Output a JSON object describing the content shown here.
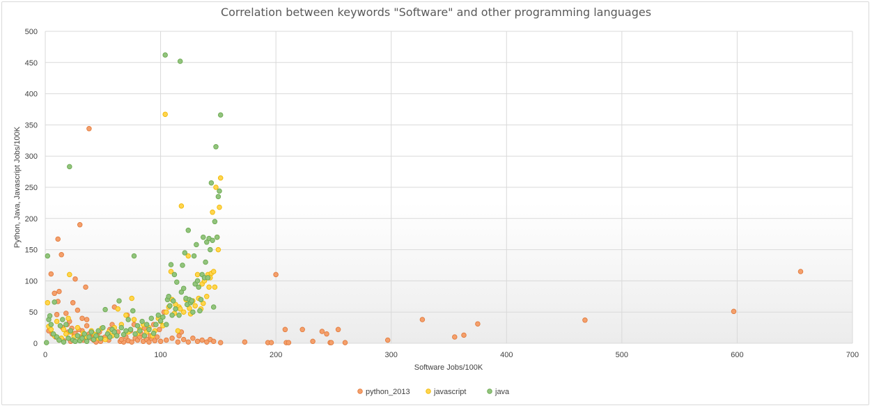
{
  "chart_data": {
    "type": "scatter",
    "title": "Correlation between keywords \"Software\" and other programming languages",
    "xlabel": "Software Jobs/100K",
    "ylabel": "Python, Java, Javascript Jobs/100K",
    "xlim": [
      0,
      700
    ],
    "ylim": [
      0,
      500
    ],
    "x_ticks": [
      0,
      100,
      200,
      300,
      400,
      500,
      600,
      700
    ],
    "y_ticks": [
      0,
      50,
      100,
      150,
      200,
      250,
      300,
      350,
      400,
      450,
      500
    ],
    "grid": true,
    "legend_position": "bottom",
    "series": [
      {
        "name": "python_2013",
        "color": "#f4a06c",
        "stroke": "#e27a3c",
        "points": [
          [
            5,
            111
          ],
          [
            8,
            80
          ],
          [
            10,
            46
          ],
          [
            11,
            67
          ],
          [
            11,
            167
          ],
          [
            12,
            83
          ],
          [
            14,
            142
          ],
          [
            18,
            48
          ],
          [
            22,
            3
          ],
          [
            24,
            65
          ],
          [
            26,
            103
          ],
          [
            28,
            53
          ],
          [
            30,
            190
          ],
          [
            32,
            40
          ],
          [
            35,
            90
          ],
          [
            38,
            15
          ],
          [
            38,
            344
          ],
          [
            15,
            25
          ],
          [
            20,
            18
          ],
          [
            25,
            12
          ],
          [
            30,
            10
          ],
          [
            32,
            20
          ],
          [
            36,
            28
          ],
          [
            40,
            8
          ],
          [
            42,
            5
          ],
          [
            45,
            12
          ],
          [
            48,
            3
          ],
          [
            50,
            8
          ],
          [
            55,
            5
          ],
          [
            58,
            30
          ],
          [
            60,
            58
          ],
          [
            62,
            12
          ],
          [
            65,
            3
          ],
          [
            68,
            2
          ],
          [
            70,
            10
          ],
          [
            72,
            4
          ],
          [
            75,
            2
          ],
          [
            78,
            8
          ],
          [
            80,
            5
          ],
          [
            82,
            10
          ],
          [
            85,
            3
          ],
          [
            88,
            6
          ],
          [
            90,
            2
          ],
          [
            92,
            8
          ],
          [
            95,
            4
          ],
          [
            97,
            10
          ],
          [
            100,
            3
          ],
          [
            105,
            5
          ],
          [
            110,
            8
          ],
          [
            115,
            2
          ],
          [
            116,
            12
          ],
          [
            118,
            18
          ],
          [
            120,
            6
          ],
          [
            124,
            2
          ],
          [
            128,
            8
          ],
          [
            132,
            3
          ],
          [
            136,
            5
          ],
          [
            140,
            2
          ],
          [
            143,
            6
          ],
          [
            146,
            3
          ],
          [
            152,
            1
          ],
          [
            173,
            2
          ],
          [
            193,
            1
          ],
          [
            196,
            1
          ],
          [
            200,
            110
          ],
          [
            208,
            22
          ],
          [
            209,
            1
          ],
          [
            211,
            1
          ],
          [
            223,
            22
          ],
          [
            232,
            3
          ],
          [
            240,
            19
          ],
          [
            244,
            15
          ],
          [
            247,
            1
          ],
          [
            248,
            1
          ],
          [
            254,
            22
          ],
          [
            260,
            1
          ],
          [
            297,
            5
          ],
          [
            327,
            38
          ],
          [
            355,
            10
          ],
          [
            363,
            13
          ],
          [
            375,
            31
          ],
          [
            468,
            37
          ],
          [
            597,
            51
          ],
          [
            655,
            115
          ],
          [
            3,
            20
          ],
          [
            6,
            15
          ],
          [
            9,
            10
          ],
          [
            12,
            6
          ],
          [
            16,
            4
          ],
          [
            19,
            30
          ],
          [
            21,
            35
          ],
          [
            23,
            24
          ],
          [
            26,
            16
          ],
          [
            29,
            22
          ],
          [
            33,
            5
          ],
          [
            36,
            38
          ],
          [
            41,
            16
          ],
          [
            44,
            2
          ],
          [
            47,
            18
          ],
          [
            52,
            10
          ],
          [
            56,
            22
          ],
          [
            63,
            18
          ],
          [
            66,
            6
          ],
          [
            71,
            45
          ],
          [
            74,
            20
          ],
          [
            77,
            30
          ],
          [
            83,
            16
          ],
          [
            86,
            24
          ],
          [
            91,
            12
          ],
          [
            94,
            30
          ],
          [
            99,
            22
          ],
          [
            103,
            50
          ]
        ]
      },
      {
        "name": "javascript",
        "color": "#ffd54f",
        "stroke": "#f0b800",
        "points": [
          [
            2,
            65
          ],
          [
            3,
            27
          ],
          [
            5,
            22
          ],
          [
            8,
            12
          ],
          [
            10,
            35
          ],
          [
            12,
            5
          ],
          [
            14,
            8
          ],
          [
            16,
            22
          ],
          [
            18,
            15
          ],
          [
            20,
            40
          ],
          [
            21,
            110
          ],
          [
            22,
            18
          ],
          [
            25,
            10
          ],
          [
            28,
            25
          ],
          [
            30,
            6
          ],
          [
            33,
            16
          ],
          [
            36,
            10
          ],
          [
            40,
            20
          ],
          [
            43,
            14
          ],
          [
            46,
            8
          ],
          [
            49,
            24
          ],
          [
            52,
            6
          ],
          [
            55,
            18
          ],
          [
            58,
            12
          ],
          [
            60,
            25
          ],
          [
            63,
            55
          ],
          [
            66,
            30
          ],
          [
            70,
            45
          ],
          [
            72,
            18
          ],
          [
            75,
            72
          ],
          [
            77,
            38
          ],
          [
            80,
            16
          ],
          [
            82,
            22
          ],
          [
            85,
            30
          ],
          [
            88,
            18
          ],
          [
            90,
            25
          ],
          [
            93,
            12
          ],
          [
            95,
            20
          ],
          [
            98,
            40
          ],
          [
            100,
            35
          ],
          [
            102,
            28
          ],
          [
            104,
            367
          ],
          [
            105,
            50
          ],
          [
            107,
            58
          ],
          [
            108,
            60
          ],
          [
            109,
            115
          ],
          [
            110,
            70
          ],
          [
            112,
            48
          ],
          [
            113,
            62
          ],
          [
            115,
            20
          ],
          [
            116,
            58
          ],
          [
            117,
            55
          ],
          [
            118,
            220
          ],
          [
            120,
            50
          ],
          [
            122,
            70
          ],
          [
            124,
            140
          ],
          [
            125,
            56
          ],
          [
            126,
            47
          ],
          [
            128,
            68
          ],
          [
            130,
            60
          ],
          [
            132,
            110
          ],
          [
            133,
            72
          ],
          [
            135,
            55
          ],
          [
            136,
            95
          ],
          [
            137,
            64
          ],
          [
            138,
            100
          ],
          [
            140,
            75
          ],
          [
            141,
            110
          ],
          [
            142,
            90
          ],
          [
            143,
            105
          ],
          [
            144,
            112
          ],
          [
            145,
            210
          ],
          [
            146,
            115
          ],
          [
            147,
            90
          ],
          [
            148,
            250
          ],
          [
            149,
            170
          ],
          [
            150,
            150
          ],
          [
            151,
            218
          ],
          [
            152,
            265
          ]
        ]
      },
      {
        "name": "java",
        "color": "#92c47d",
        "stroke": "#6aa84f",
        "points": [
          [
            1,
            1
          ],
          [
            2,
            140
          ],
          [
            3,
            38
          ],
          [
            4,
            44
          ],
          [
            5,
            30
          ],
          [
            7,
            15
          ],
          [
            8,
            66
          ],
          [
            10,
            10
          ],
          [
            12,
            5
          ],
          [
            13,
            28
          ],
          [
            15,
            38
          ],
          [
            16,
            2
          ],
          [
            18,
            30
          ],
          [
            20,
            8
          ],
          [
            21,
            283
          ],
          [
            22,
            20
          ],
          [
            24,
            5
          ],
          [
            26,
            3
          ],
          [
            28,
            12
          ],
          [
            30,
            4
          ],
          [
            32,
            8
          ],
          [
            34,
            15
          ],
          [
            36,
            3
          ],
          [
            38,
            10
          ],
          [
            40,
            18
          ],
          [
            42,
            6
          ],
          [
            44,
            12
          ],
          [
            46,
            20
          ],
          [
            48,
            8
          ],
          [
            50,
            25
          ],
          [
            52,
            54
          ],
          [
            54,
            15
          ],
          [
            56,
            10
          ],
          [
            58,
            22
          ],
          [
            60,
            18
          ],
          [
            62,
            12
          ],
          [
            64,
            68
          ],
          [
            66,
            25
          ],
          [
            68,
            14
          ],
          [
            70,
            20
          ],
          [
            72,
            38
          ],
          [
            74,
            22
          ],
          [
            76,
            52
          ],
          [
            77,
            140
          ],
          [
            78,
            15
          ],
          [
            80,
            28
          ],
          [
            82,
            20
          ],
          [
            84,
            35
          ],
          [
            86,
            12
          ],
          [
            88,
            30
          ],
          [
            90,
            22
          ],
          [
            92,
            40
          ],
          [
            94,
            16
          ],
          [
            96,
            30
          ],
          [
            98,
            45
          ],
          [
            100,
            36
          ],
          [
            102,
            42
          ],
          [
            104,
            462
          ],
          [
            105,
            30
          ],
          [
            106,
            70
          ],
          [
            107,
            75
          ],
          [
            108,
            60
          ],
          [
            109,
            126
          ],
          [
            110,
            45
          ],
          [
            111,
            68
          ],
          [
            112,
            110
          ],
          [
            113,
            55
          ],
          [
            114,
            98
          ],
          [
            116,
            45
          ],
          [
            117,
            452
          ],
          [
            118,
            82
          ],
          [
            119,
            125
          ],
          [
            120,
            88
          ],
          [
            121,
            145
          ],
          [
            122,
            72
          ],
          [
            123,
            62
          ],
          [
            124,
            181
          ],
          [
            125,
            70
          ],
          [
            126,
            65
          ],
          [
            127,
            68
          ],
          [
            128,
            50
          ],
          [
            129,
            140
          ],
          [
            130,
            95
          ],
          [
            131,
            158
          ],
          [
            132,
            100
          ],
          [
            133,
            90
          ],
          [
            134,
            52
          ],
          [
            135,
            70
          ],
          [
            136,
            110
          ],
          [
            137,
            170
          ],
          [
            138,
            105
          ],
          [
            139,
            130
          ],
          [
            140,
            162
          ],
          [
            141,
            105
          ],
          [
            142,
            168
          ],
          [
            143,
            150
          ],
          [
            144,
            257
          ],
          [
            145,
            165
          ],
          [
            146,
            58
          ],
          [
            147,
            195
          ],
          [
            148,
            315
          ],
          [
            149,
            170
          ],
          [
            150,
            235
          ],
          [
            151,
            244
          ],
          [
            152,
            366
          ]
        ]
      }
    ]
  }
}
